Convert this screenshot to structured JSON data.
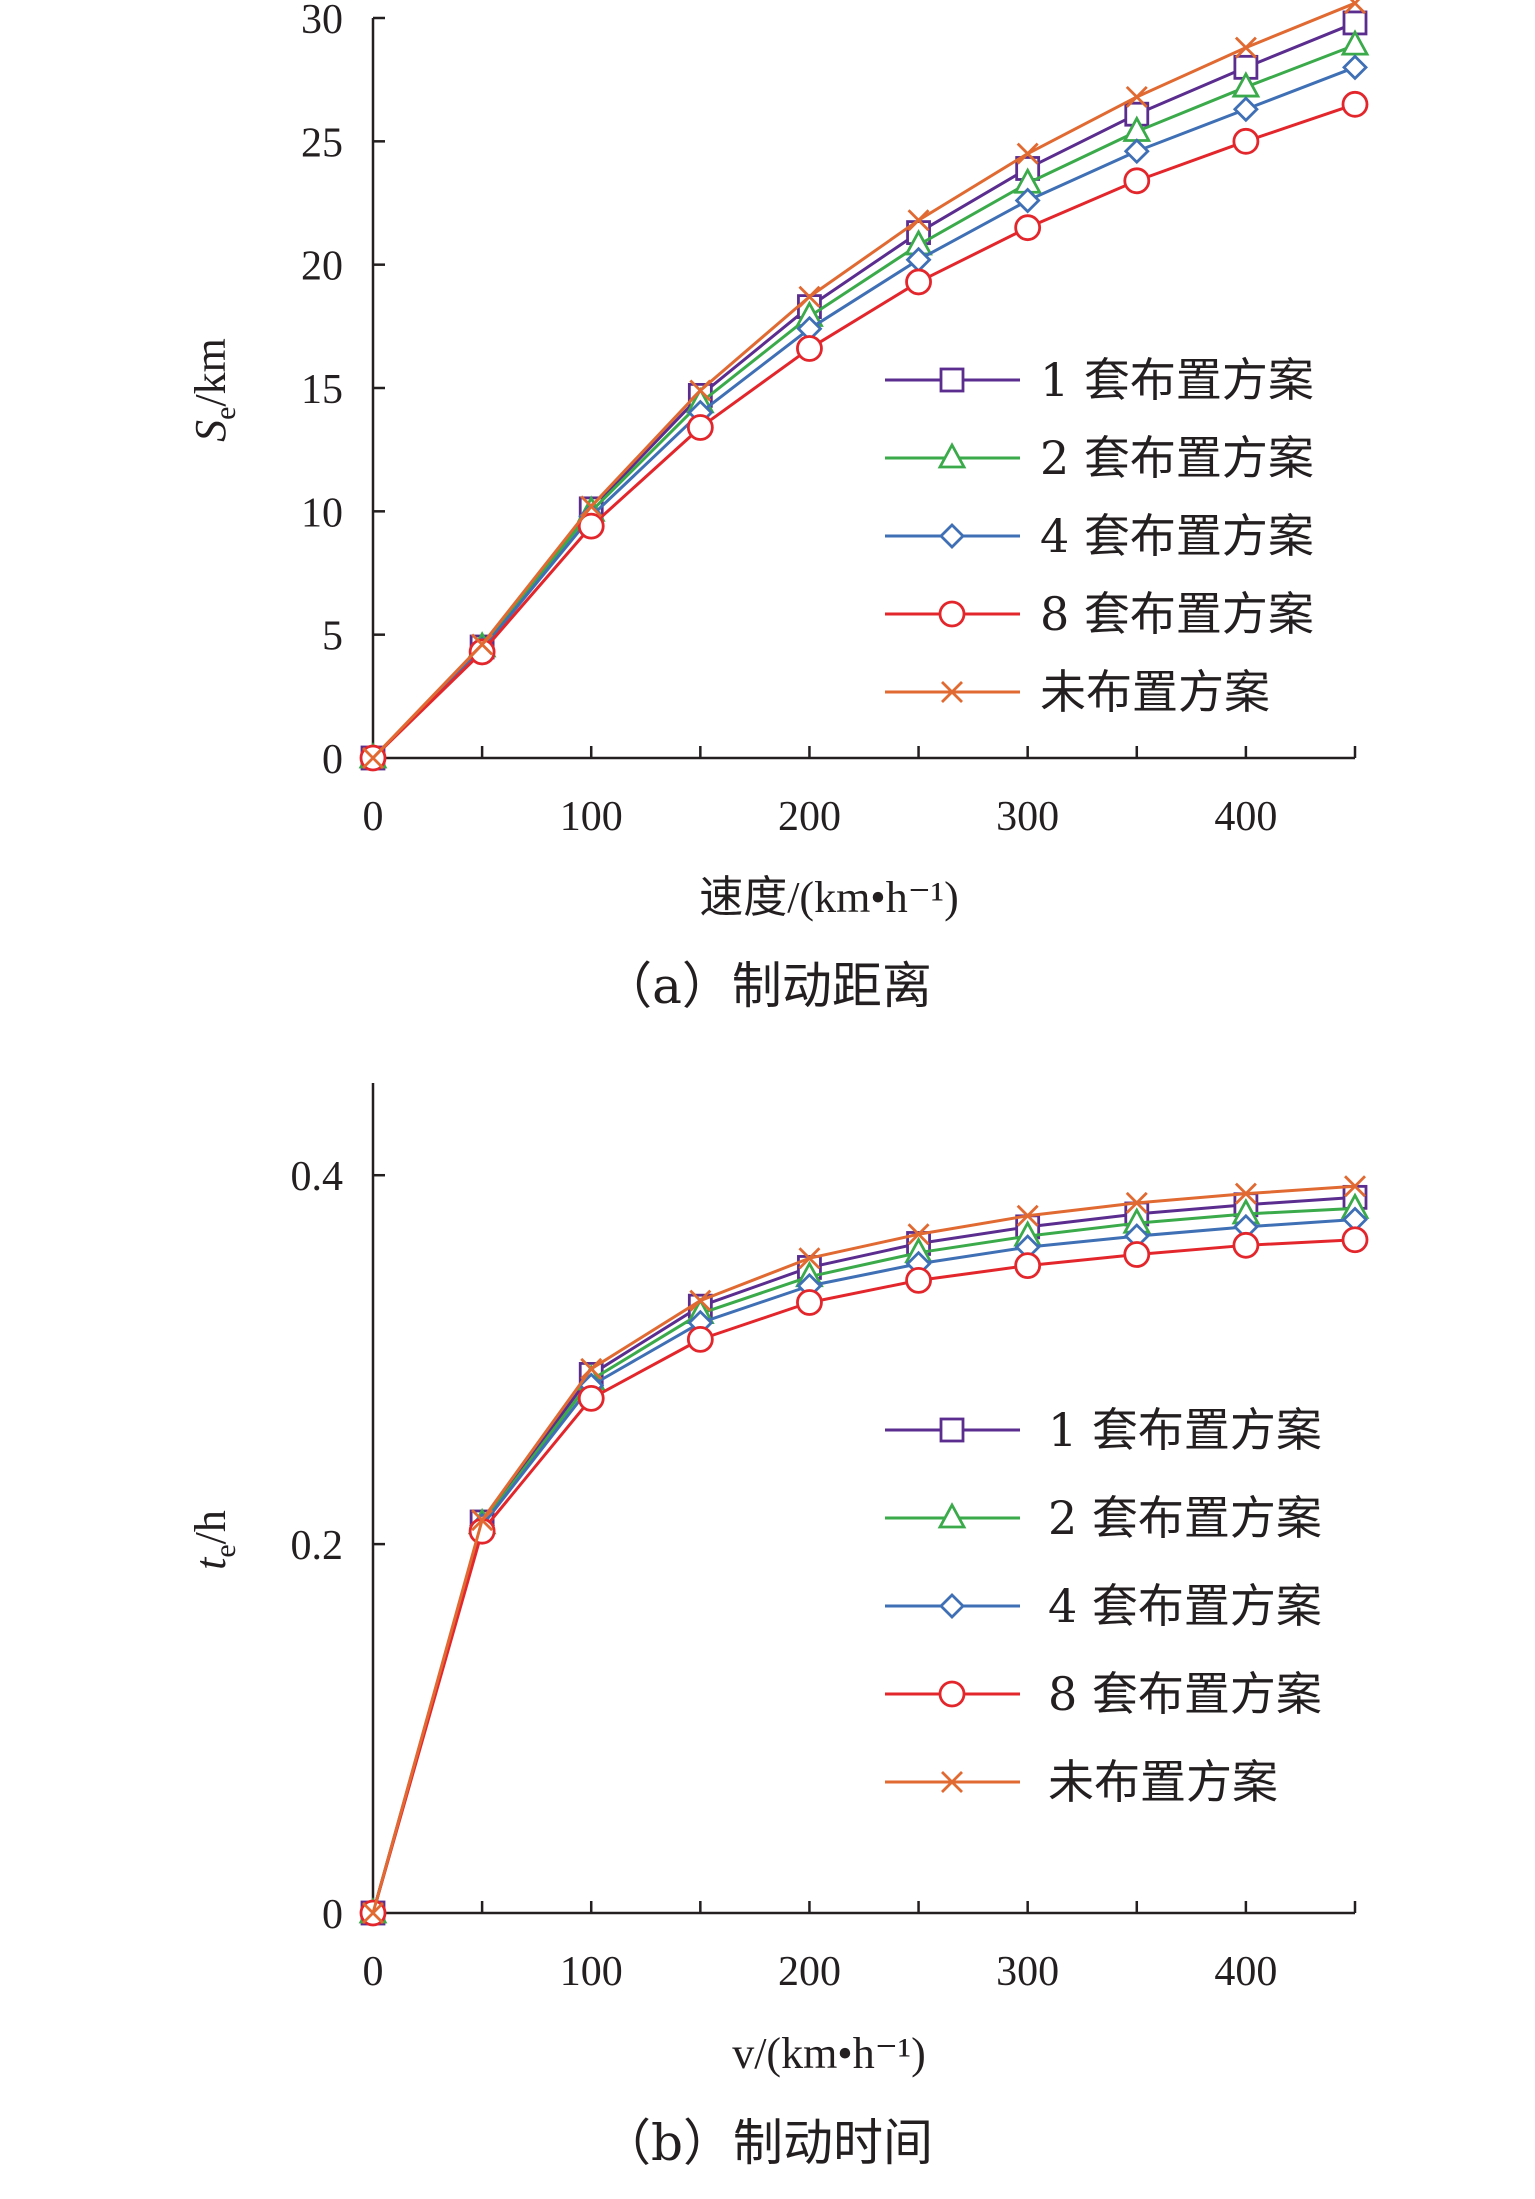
{
  "colors": {
    "s1": "#5a2d8f",
    "s2": "#3aaa4a",
    "s4": "#3f6fb5",
    "s8": "#e3262b",
    "none": "#e06a32",
    "axis": "#231f20"
  },
  "chart_data": [
    {
      "id": "a",
      "type": "line",
      "caption": "（a）制动距离",
      "xlabel": "速度/(km•h⁻¹)",
      "ylabel_main": "S",
      "ylabel_sub": "e",
      "ylabel_unit": "/km",
      "xlim": [
        0,
        450
      ],
      "ylim": [
        0,
        30
      ],
      "xticks": [
        0,
        100,
        200,
        300,
        400
      ],
      "yticks": [
        0,
        5,
        10,
        15,
        20,
        25,
        30
      ],
      "x": [
        0,
        50,
        100,
        150,
        200,
        250,
        300,
        350,
        400,
        450
      ],
      "series": [
        {
          "key": "s1",
          "name": "1 套布置方案",
          "marker": "square",
          "values": [
            0,
            4.5,
            10.1,
            14.7,
            18.3,
            21.3,
            23.9,
            26.1,
            28.0,
            29.8
          ]
        },
        {
          "key": "s2",
          "name": "2 套布置方案",
          "marker": "triangle",
          "values": [
            0,
            4.5,
            10.0,
            14.4,
            17.9,
            20.8,
            23.3,
            25.4,
            27.2,
            28.9
          ]
        },
        {
          "key": "s4",
          "name": "4 套布置方案",
          "marker": "diamond",
          "values": [
            0,
            4.4,
            9.8,
            14.0,
            17.4,
            20.2,
            22.6,
            24.6,
            26.3,
            28.0
          ]
        },
        {
          "key": "s8",
          "name": "8 套布置方案",
          "marker": "circle",
          "values": [
            0,
            4.3,
            9.4,
            13.4,
            16.6,
            19.3,
            21.5,
            23.4,
            25.0,
            26.5
          ]
        },
        {
          "key": "none",
          "name": "未布置方案",
          "marker": "x",
          "values": [
            0,
            4.6,
            10.2,
            14.9,
            18.7,
            21.8,
            24.5,
            26.8,
            28.8,
            30.6
          ]
        }
      ]
    },
    {
      "id": "b",
      "type": "line",
      "caption": "（b）制动时间",
      "xlabel": "v/(km•h⁻¹)",
      "ylabel_main": "t",
      "ylabel_sub": "e",
      "ylabel_unit": "/h",
      "xlim": [
        0,
        450
      ],
      "ylim": [
        0,
        0.45
      ],
      "xticks": [
        0,
        100,
        200,
        300,
        400
      ],
      "yticks": [
        0,
        0.2,
        0.4
      ],
      "ytick_labels": [
        "0",
        "0.2",
        "0.4"
      ],
      "x": [
        0,
        50,
        100,
        150,
        200,
        250,
        300,
        350,
        400,
        450
      ],
      "series": [
        {
          "key": "s1",
          "name": "1 套布置方案",
          "marker": "square",
          "values": [
            0,
            0.212,
            0.292,
            0.329,
            0.35,
            0.363,
            0.372,
            0.379,
            0.384,
            0.388
          ]
        },
        {
          "key": "s2",
          "name": "2 套布置方案",
          "marker": "triangle",
          "values": [
            0,
            0.211,
            0.289,
            0.325,
            0.345,
            0.358,
            0.367,
            0.374,
            0.379,
            0.382
          ]
        },
        {
          "key": "s4",
          "name": "4 套布置方案",
          "marker": "diamond",
          "values": [
            0,
            0.21,
            0.286,
            0.32,
            0.34,
            0.352,
            0.361,
            0.367,
            0.372,
            0.376
          ]
        },
        {
          "key": "s8",
          "name": "8 套布置方案",
          "marker": "circle",
          "values": [
            0,
            0.207,
            0.279,
            0.311,
            0.331,
            0.343,
            0.351,
            0.357,
            0.362,
            0.365
          ]
        },
        {
          "key": "none",
          "name": "未布置方案",
          "marker": "x",
          "values": [
            0,
            0.213,
            0.295,
            0.332,
            0.355,
            0.368,
            0.378,
            0.385,
            0.39,
            0.394
          ]
        }
      ]
    }
  ]
}
